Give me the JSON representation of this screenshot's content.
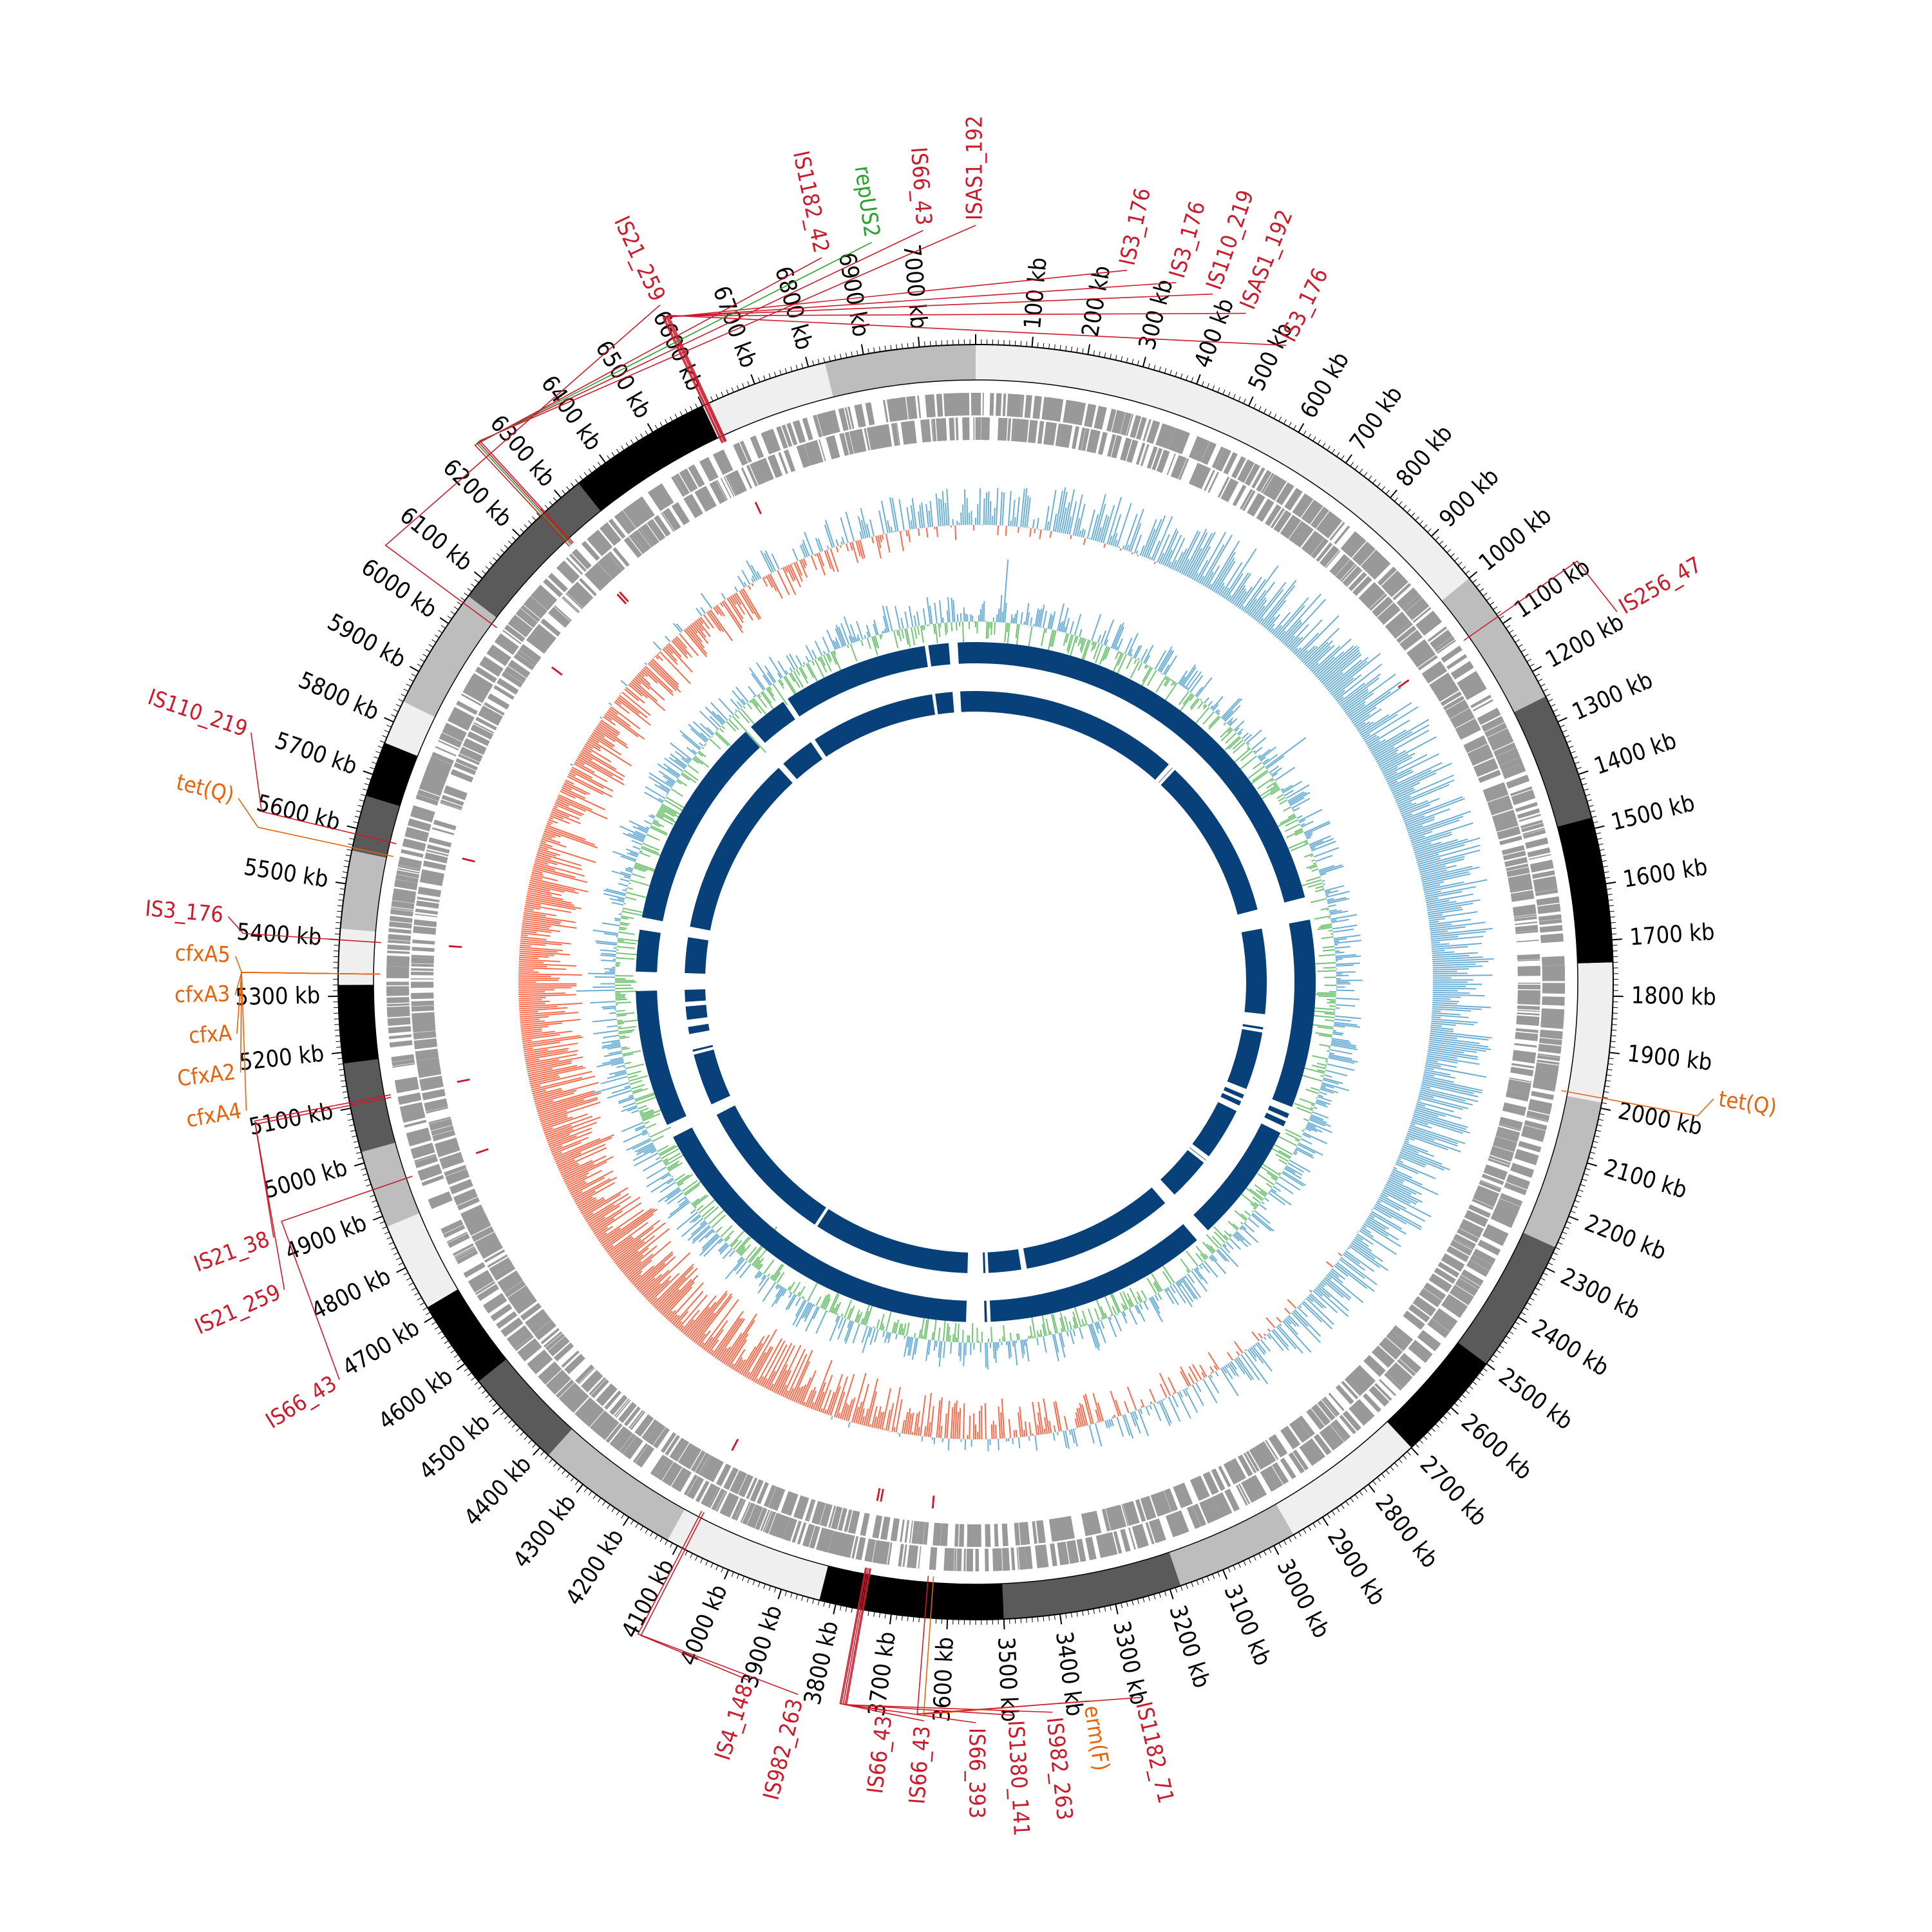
{
  "genome": {
    "length_kb": 7100,
    "tick_unit": "kb"
  },
  "ticks": [
    100,
    200,
    300,
    400,
    500,
    600,
    700,
    800,
    900,
    1000,
    1100,
    1200,
    1300,
    1400,
    1500,
    1600,
    1700,
    1800,
    1900,
    2000,
    2100,
    2200,
    2300,
    2400,
    2500,
    2600,
    2700,
    2800,
    2900,
    3000,
    3100,
    3200,
    3300,
    3400,
    3500,
    3600,
    3700,
    3800,
    3900,
    4000,
    4100,
    4200,
    4300,
    4400,
    4500,
    4600,
    4700,
    4800,
    4900,
    5000,
    5100,
    5200,
    5300,
    5400,
    5500,
    5600,
    5700,
    5800,
    5900,
    6000,
    6100,
    6200,
    6300,
    6400,
    6500,
    6600,
    6700,
    6800,
    6900,
    7000
  ],
  "contigs": [
    {
      "start": 0,
      "end": 1000,
      "shade": "#efefef"
    },
    {
      "start": 1000,
      "end": 1250,
      "shade": "#bdbdbd"
    },
    {
      "start": 1250,
      "end": 1480,
      "shade": "#5a5a5a"
    },
    {
      "start": 1480,
      "end": 1740,
      "shade": "#000000"
    },
    {
      "start": 1740,
      "end": 1990,
      "shade": "#efefef"
    },
    {
      "start": 1990,
      "end": 2260,
      "shade": "#bdbdbd"
    },
    {
      "start": 2260,
      "end": 2500,
      "shade": "#5a5a5a"
    },
    {
      "start": 2500,
      "end": 2700,
      "shade": "#000000"
    },
    {
      "start": 2700,
      "end": 2960,
      "shade": "#efefef"
    },
    {
      "start": 2960,
      "end": 3180,
      "shade": "#bdbdbd"
    },
    {
      "start": 3180,
      "end": 3500,
      "shade": "#5a5a5a"
    },
    {
      "start": 3500,
      "end": 3830,
      "shade": "#000000"
    },
    {
      "start": 3830,
      "end": 4120,
      "shade": "#efefef"
    },
    {
      "start": 4120,
      "end": 4380,
      "shade": "#bdbdbd"
    },
    {
      "start": 4380,
      "end": 4560,
      "shade": "#5a5a5a"
    },
    {
      "start": 4560,
      "end": 4720,
      "shade": "#000000"
    },
    {
      "start": 4720,
      "end": 4880,
      "shade": "#efefef"
    },
    {
      "start": 4880,
      "end": 5020,
      "shade": "#bdbdbd"
    },
    {
      "start": 5020,
      "end": 5180,
      "shade": "#5a5a5a"
    },
    {
      "start": 5180,
      "end": 5320,
      "shade": "#000000"
    },
    {
      "start": 5320,
      "end": 5420,
      "shade": "#efefef"
    },
    {
      "start": 5420,
      "end": 5560,
      "shade": "#bdbdbd"
    },
    {
      "start": 5560,
      "end": 5660,
      "shade": "#5a5a5a"
    },
    {
      "start": 5660,
      "end": 5760,
      "shade": "#000000"
    },
    {
      "start": 5760,
      "end": 5840,
      "shade": "#efefef"
    },
    {
      "start": 5840,
      "end": 6060,
      "shade": "#bdbdbd"
    },
    {
      "start": 6060,
      "end": 6340,
      "shade": "#5a5a5a"
    },
    {
      "start": 6340,
      "end": 6600,
      "shade": "#000000"
    },
    {
      "start": 6600,
      "end": 6830,
      "shade": "#efefef"
    },
    {
      "start": 6830,
      "end": 7100,
      "shade": "#bdbdbd"
    }
  ],
  "colors": {
    "outline": "#000000",
    "gene_track": "#999999",
    "gc_skew_positive": "#6baed6",
    "gc_skew_negative": "#fb6a4a",
    "gc_content_outer": "#6baed6",
    "gc_content_inner": "#74c476",
    "homology_blocks": "#08407a",
    "is_element": "#cc1a2b",
    "resistance_gene": "#e8620a",
    "replicon": "#2ca02c"
  },
  "homology_gaps_kb": [
    3500,
    3520,
    3540,
    6930,
    5500,
    6260,
    6420,
    7010,
    2200,
    2240,
    2270,
    1490,
    1520,
    1530,
    4790,
    4795,
    4805,
    5295,
    5310,
    5330,
    2700,
    2725
  ],
  "annotations": [
    {
      "label": "IS3_176",
      "pos": 6612,
      "kind": "is_element",
      "angle": -64,
      "radius": 1100
    },
    {
      "label": "ISAS1_192",
      "pos": 6610,
      "kind": "is_element",
      "angle": -68,
      "radius": 1120
    },
    {
      "label": "IS110_219",
      "pos": 6608,
      "kind": "is_element",
      "angle": -71,
      "radius": 1130
    },
    {
      "label": "IS3_176",
      "pos": 6605,
      "kind": "is_element",
      "angle": -74,
      "radius": 1130
    },
    {
      "label": "IS3_176",
      "pos": 6603,
      "kind": "is_element",
      "angle": -78,
      "radius": 1130
    },
    {
      "label": "ISAS1_192",
      "pos": 6262,
      "kind": "is_element",
      "angle": -90,
      "radius": 1175
    },
    {
      "label": "IS66_43",
      "pos": 6259,
      "kind": "is_element",
      "angle": -94,
      "radius": 1170
    },
    {
      "label": "repUS2",
      "pos": 6256,
      "kind": "replicon",
      "angle": -98,
      "radius": 1160
    },
    {
      "label": "IS1182_42",
      "pos": 6252,
      "kind": "is_element",
      "angle": -102,
      "radius": 1150
    },
    {
      "label": "IS21_259",
      "pos": 6045,
      "kind": "is_element",
      "angle": -115,
      "radius": 1160
    },
    {
      "label": "IS256_47",
      "pos": 1085,
      "kind": "is_element",
      "angle": -30,
      "radius": 1150
    },
    {
      "label": "tet(Q)",
      "pos": 1982,
      "kind": "resistance_gene",
      "angle": 9,
      "radius": 1160
    },
    {
      "label": "IS110_219",
      "pos": 5590,
      "kind": "is_element",
      "angle": -161,
      "radius": 1190
    },
    {
      "label": "tet(Q)",
      "pos": 5565,
      "kind": "resistance_gene",
      "angle": -166,
      "radius": 1180
    },
    {
      "label": "IS3_176",
      "pos": 5400,
      "kind": "is_element",
      "angle": -175,
      "radius": 1165
    },
    {
      "label": "cfxA5",
      "pos": 5340,
      "kind": "resistance_gene",
      "angle": -178,
      "radius": 1150
    },
    {
      "label": "cfxA3",
      "pos": 5340,
      "kind": "resistance_gene",
      "angle": -181,
      "radius": 1150
    },
    {
      "label": "cfxA",
      "pos": 5340,
      "kind": "resistance_gene",
      "angle": -184,
      "radius": 1150
    },
    {
      "label": "CfxA2",
      "pos": 5340,
      "kind": "resistance_gene",
      "angle": -187,
      "radius": 1150
    },
    {
      "label": "cfxA4",
      "pos": 5340,
      "kind": "resistance_gene",
      "angle": -190,
      "radius": 1150
    },
    {
      "label": "IS21_38",
      "pos": 5110,
      "kind": "is_element",
      "angle": -200,
      "radius": 1160
    },
    {
      "label": "IS21_259",
      "pos": 5105,
      "kind": "is_element",
      "angle": -204,
      "radius": 1175
    },
    {
      "label": "IS66_43",
      "pos": 4950,
      "kind": "is_element",
      "angle": -212,
      "radius": 1165
    },
    {
      "label": "IS982_263",
      "pos": 4090,
      "kind": "is_element",
      "angle": -256,
      "radius": 1140
    },
    {
      "label": "IS4_148",
      "pos": 4085,
      "kind": "is_element",
      "angle": -252,
      "radius": 1140
    },
    {
      "label": "IS66_43",
      "pos": 3760,
      "kind": "is_element",
      "angle": -263,
      "radius": 1140
    },
    {
      "label": "IS66_43",
      "pos": 3758,
      "kind": "is_element",
      "angle": -266,
      "radius": 1150
    },
    {
      "label": "IS66_393",
      "pos": 3755,
      "kind": "is_element",
      "angle": -270,
      "radius": 1150
    },
    {
      "label": "IS1380_141",
      "pos": 3752,
      "kind": "is_element",
      "angle": -273,
      "radius": 1140
    },
    {
      "label": "IS982_263",
      "pos": 3750,
      "kind": "is_element",
      "angle": -276,
      "radius": 1140
    },
    {
      "label": "erm(F)",
      "pos": 3630,
      "kind": "resistance_gene",
      "angle": -279,
      "radius": 1130
    },
    {
      "label": "IS1182_71",
      "pos": 3640,
      "kind": "is_element",
      "angle": -283,
      "radius": 1140
    }
  ]
}
